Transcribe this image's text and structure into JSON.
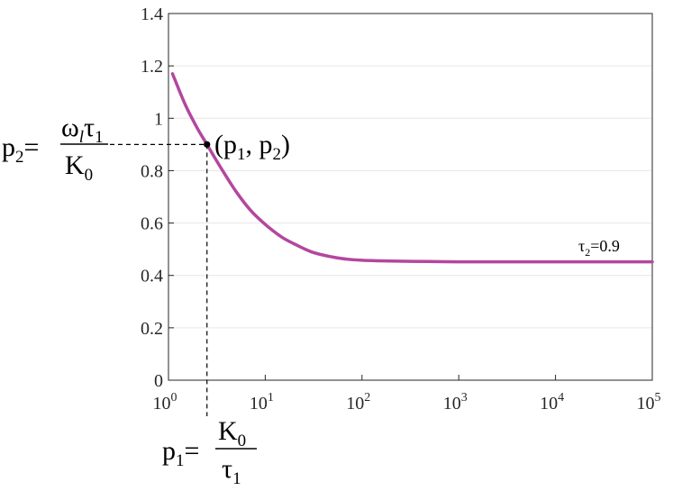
{
  "chart_data": {
    "type": "line",
    "xscale": "log",
    "xlim": [
      1,
      100000
    ],
    "ylim": [
      0,
      1.4
    ],
    "grid": "y-only",
    "title": "",
    "xlabel": "",
    "ylabel": "",
    "y_ticks": [
      {
        "value": 0,
        "label": "0"
      },
      {
        "value": 0.2,
        "label": "0.2"
      },
      {
        "value": 0.4,
        "label": "0.4"
      },
      {
        "value": 0.6,
        "label": "0.6"
      },
      {
        "value": 0.8,
        "label": "0.8"
      },
      {
        "value": 1,
        "label": "1"
      },
      {
        "value": 1.2,
        "label": "1.2"
      },
      {
        "value": 1.4,
        "label": "1.4"
      }
    ],
    "x_ticks": [
      {
        "value": 1,
        "base": "10",
        "exp": "0"
      },
      {
        "value": 10,
        "base": "10",
        "exp": "1"
      },
      {
        "value": 100,
        "base": "10",
        "exp": "2"
      },
      {
        "value": 1000,
        "base": "10",
        "exp": "3"
      },
      {
        "value": 10000,
        "base": "10",
        "exp": "4"
      },
      {
        "value": 100000,
        "base": "10",
        "exp": "5"
      }
    ],
    "series": [
      {
        "color": "#b3479e",
        "x": [
          1.1,
          1.5,
          2,
          2.5,
          3,
          4,
          5,
          7,
          10,
          15,
          20,
          30,
          50,
          70,
          100,
          200,
          500,
          1000,
          10000,
          100000
        ],
        "y": [
          1.17,
          1.05,
          0.96,
          0.9,
          0.85,
          0.775,
          0.72,
          0.65,
          0.595,
          0.545,
          0.52,
          0.49,
          0.47,
          0.462,
          0.458,
          0.455,
          0.453,
          0.452,
          0.452,
          0.452
        ]
      }
    ],
    "point": {
      "x": 2.5,
      "y": 0.9
    },
    "annotations": {
      "point_label": {
        "open": "(p",
        "sub1": "1",
        "mid": ", p",
        "sub2": "2",
        "close": ")"
      },
      "series_label": {
        "base": "τ",
        "sub": "2",
        "rest": "=0.9"
      },
      "p2_label": {
        "lhs": "p",
        "lhs_sub": "2",
        "eq": "=",
        "num_a": "ω",
        "num_a_sub": "l",
        "num_b": "τ",
        "num_b_sub": "1",
        "den": "K",
        "den_sub": "0"
      },
      "p1_label": {
        "lhs": "p",
        "lhs_sub": "1",
        "eq": "=",
        "num": "K",
        "num_sub": "0",
        "den": "τ",
        "den_sub": "1"
      }
    }
  }
}
